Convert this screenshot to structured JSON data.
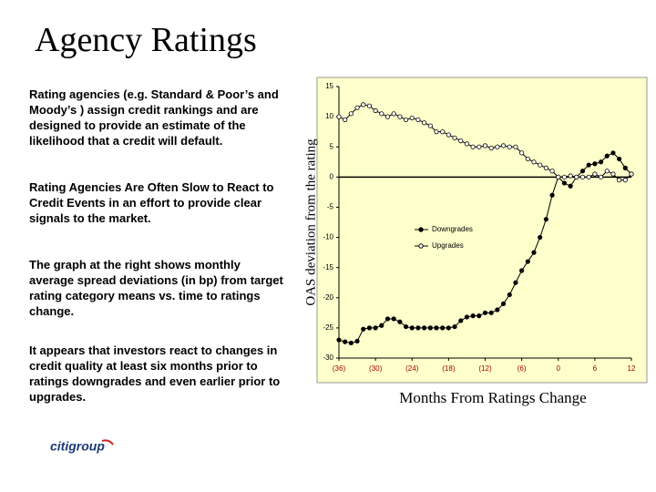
{
  "title": "Agency Ratings",
  "paragraphs": [
    "Rating agencies (e.g. Standard & Poor’s and Moody’s ) assign credit rankings and are designed to provide an estimate of the likelihood that a credit will default.",
    "Rating Agencies Are Often Slow to React to Credit Events in an effort to provide clear signals to the market.",
    "The graph at the right shows monthly average spread deviations (in bp) from target rating category means vs. time to ratings change.",
    "It appears that investors react to changes in credit quality at least six months prior to ratings downgrades and even earlier prior to upgrades."
  ],
  "logo": "citigroup",
  "chart_data": {
    "type": "line",
    "y_label": "OAS deviation from the rating",
    "x_label": "Months From Ratings Change",
    "x": [
      -36,
      -35,
      -34,
      -33,
      -32,
      -31,
      -30,
      -29,
      -28,
      -27,
      -26,
      -25,
      -24,
      -23,
      -22,
      -21,
      -20,
      -19,
      -18,
      -17,
      -16,
      -15,
      -14,
      -13,
      -12,
      -11,
      -10,
      -9,
      -8,
      -7,
      -6,
      -5,
      -4,
      -3,
      -2,
      -1,
      0,
      1,
      2,
      3,
      4,
      5,
      6,
      7,
      8,
      9,
      10,
      11,
      12
    ],
    "series": [
      {
        "name": "Downgrades",
        "color": "#000000",
        "marker": "filled",
        "values": [
          -27,
          -27.3,
          -27.5,
          -27.2,
          -25.2,
          -25,
          -25,
          -24.6,
          -23.5,
          -23.5,
          -24,
          -24.8,
          -25,
          -25,
          -25,
          -25,
          -25,
          -25,
          -25,
          -24.8,
          -23.8,
          -23.2,
          -23,
          -23,
          -22.5,
          -22.5,
          -22,
          -21,
          -19.5,
          -17.5,
          -15.5,
          -14,
          -12.5,
          -10,
          -7,
          -3,
          0,
          -1,
          -1.5,
          0,
          1,
          2,
          2.2,
          2.5,
          3.5,
          4,
          3,
          1.5,
          0.5
        ]
      },
      {
        "name": "Upgrades",
        "color": "#000000",
        "marker": "open",
        "values": [
          10,
          9.5,
          10.5,
          11.5,
          12,
          11.8,
          11,
          10.5,
          10,
          10.5,
          10,
          9.5,
          9.8,
          9.5,
          9,
          8.5,
          7.5,
          7.5,
          7,
          6.5,
          6,
          5.5,
          5,
          5,
          5.2,
          4.8,
          5,
          5.2,
          5,
          5,
          4,
          3,
          2.5,
          2,
          1.5,
          1,
          0,
          0,
          0.2,
          0,
          0,
          0,
          0.5,
          0,
          1,
          0.5,
          -0.5,
          -0.5,
          0.5
        ]
      }
    ],
    "xlim": [
      -36,
      12
    ],
    "xticks": [
      {
        "value": -36,
        "label": "(36)"
      },
      {
        "value": -30,
        "label": "(30)"
      },
      {
        "value": -24,
        "label": "(24)"
      },
      {
        "value": -18,
        "label": "(18)"
      },
      {
        "value": -12,
        "label": "(12)"
      },
      {
        "value": -6,
        "label": "(6)"
      },
      0,
      6,
      12
    ],
    "ylim": [
      -30,
      15
    ],
    "yticks": [
      15,
      10,
      5,
      0,
      -5,
      -10,
      -15,
      -20,
      -25,
      -30
    ],
    "background": "#ffffcc"
  }
}
